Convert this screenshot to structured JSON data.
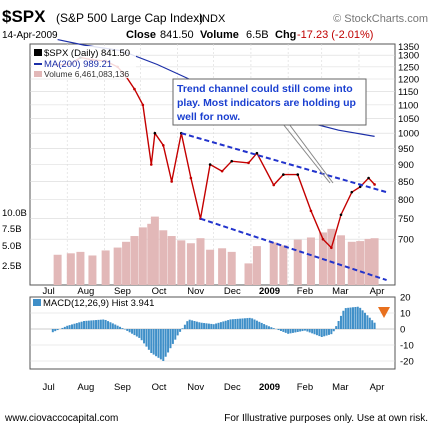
{
  "header": {
    "symbol": "$SPX",
    "name": "(S&P 500 Large Cap Index)",
    "exchange": "INDX",
    "source": "© StockCharts.com",
    "date": "14-Apr-2009",
    "close_label": "Close",
    "close_value": "841.50",
    "volume_label": "Volume",
    "volume_value": "6.5B",
    "chg_label": "Chg",
    "chg_value": "-17.23 (-2.01%)"
  },
  "legend": {
    "price": "$SPX (Daily) 841.50",
    "ma": "MA(200) 989.21",
    "volume": "Volume 6,461,083,136"
  },
  "annotation": {
    "line1": "Trend channel could still come into",
    "line2": "play.  Most indicators are holding up",
    "line3": "well for now."
  },
  "macd_label": "MACD(12,26,9) Hist 3.941",
  "footer": {
    "left": "www.ciovaccocapital.com",
    "right": "For Illustrative purposes only.   Use at own risk."
  },
  "colors": {
    "up": "#000000",
    "down": "#c40000",
    "ma": "#1c2fa8",
    "trend": "#2233cc",
    "volume": "#e2b8b8",
    "macd_hist": "#3f8fc8",
    "arrow": "#e8701e",
    "grid": "#d8d8d8"
  },
  "chart_data": [
    {
      "type": "line",
      "title": "$SPX (S&P 500 Large Cap Index)",
      "y_scale": "log",
      "ylim": [
        600,
        1350
      ],
      "y_ticks": [
        1350,
        1300,
        1250,
        1200,
        1150,
        1100,
        1050,
        1000,
        950,
        900,
        850,
        800,
        750,
        700
      ],
      "volume_ticks": [
        "10.0B",
        "7.5B",
        "5.0B",
        "2.5B"
      ],
      "x_ticks": [
        "Jul",
        "Aug",
        "Sep",
        "Oct",
        "Nov",
        "Dec",
        "2009",
        "Feb",
        "Mar",
        "Apr"
      ],
      "series": [
        {
          "name": "$SPX (Daily)",
          "x": [
            "Jul-24",
            "Aug-04",
            "Aug-12",
            "Aug-22",
            "Sep-02",
            "Sep-12",
            "Sep-19",
            "Sep-26",
            "Oct-03",
            "Oct-10",
            "Oct-13",
            "Oct-20",
            "Oct-27",
            "Nov-04",
            "Nov-12",
            "Nov-20",
            "Nov-28",
            "Dec-08",
            "Dec-16",
            "Dec-30",
            "Jan-06",
            "Jan-20",
            "Jan-28",
            "Feb-09",
            "Feb-20",
            "Mar-02",
            "Mar-09",
            "Mar-17",
            "Mar-26",
            "Apr-02",
            "Apr-09",
            "Apr-14"
          ],
          "values": [
            1258,
            1262,
            1290,
            1280,
            1275,
            1250,
            1210,
            1160,
            1100,
            900,
            1000,
            960,
            850,
            1000,
            860,
            750,
            900,
            880,
            910,
            905,
            935,
            840,
            870,
            870,
            770,
            700,
            680,
            760,
            820,
            835,
            860,
            841.5
          ]
        },
        {
          "name": "MA(200)",
          "x": [
            "Jul-24",
            "Aug-15",
            "Sep-15",
            "Oct-15",
            "Nov-15",
            "Dec-15",
            "Jan-15",
            "Feb-15",
            "Mar-15",
            "Apr-14"
          ],
          "values": [
            1370,
            1345,
            1320,
            1260,
            1190,
            1125,
            1080,
            1040,
            1010,
            989.21
          ]
        }
      ],
      "trendlines": [
        {
          "from": [
            "Nov-04",
            1000
          ],
          "to": [
            "Apr-24",
            820
          ]
        },
        {
          "from": [
            "Nov-20",
            750
          ],
          "to": [
            "Apr-24",
            610
          ]
        }
      ],
      "volume_b": [
        4.2,
        4.4,
        4.6,
        4.1,
        4.8,
        5.2,
        6.0,
        6.8,
        8.0,
        8.5,
        9.5,
        7.6,
        6.8,
        6.2,
        5.8,
        6.5,
        4.9,
        5.1,
        4.6,
        3.0,
        5.4,
        5.9,
        5.5,
        6.3,
        6.6,
        7.3,
        7.8,
        6.9,
        6.0,
        6.1,
        6.4,
        6.5
      ]
    },
    {
      "type": "bar",
      "title": "MACD(12,26,9) Hist 3.941",
      "ylim": [
        -25,
        20
      ],
      "y_ticks": [
        20,
        10,
        0,
        -10,
        -20
      ],
      "x": [
        "Jul-20",
        "Aug-01",
        "Aug-15",
        "Sep-01",
        "Sep-15",
        "Oct-01",
        "Oct-10",
        "Oct-20",
        "Nov-01",
        "Nov-10",
        "Nov-20",
        "Dec-01",
        "Dec-15",
        "Jan-01",
        "Jan-15",
        "Feb-01",
        "Feb-15",
        "Mar-01",
        "Mar-10",
        "Mar-20",
        "Apr-01",
        "Apr-14"
      ],
      "values": [
        -2,
        2,
        5,
        6,
        1,
        -6,
        -15,
        -20,
        -4,
        6,
        4,
        3,
        6,
        7,
        2,
        -3,
        -1,
        -5,
        -3,
        13,
        14,
        3.941
      ]
    }
  ]
}
